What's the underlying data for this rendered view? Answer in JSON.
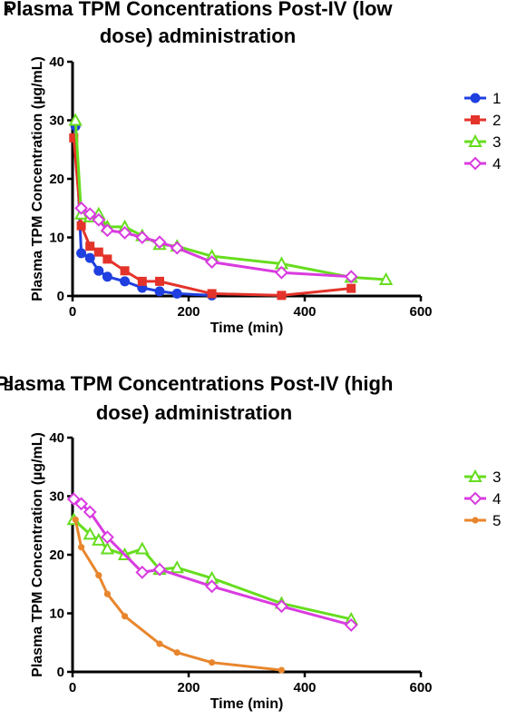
{
  "chart_data": [
    {
      "panel": "A",
      "type": "line",
      "title_lines": [
        "Plasma TPM Concentrations Post-IV (low",
        "dose) administration"
      ],
      "xlabel": "Time (min)",
      "ylabel": "Plasma TPM Concentration (µg/mL)",
      "xlim": [
        0,
        600
      ],
      "ylim": [
        0,
        40
      ],
      "xticks": [
        0,
        200,
        400,
        600
      ],
      "yticks": [
        0,
        10,
        20,
        30,
        40
      ],
      "grid": false,
      "legend_position": "right",
      "series": [
        {
          "name": "1",
          "color": "#1f3fe0",
          "marker": "circle",
          "x": [
            5,
            15,
            30,
            45,
            60,
            90,
            120,
            150,
            180,
            240
          ],
          "y": [
            29,
            7.3,
            6.5,
            4.3,
            3.3,
            2.5,
            1.4,
            0.8,
            0.4,
            0.1
          ]
        },
        {
          "name": "2",
          "color": "#e4332a",
          "marker": "square",
          "x": [
            2,
            15,
            30,
            45,
            60,
            90,
            120,
            150,
            240,
            360,
            480
          ],
          "y": [
            27,
            12,
            8.5,
            7.5,
            6.3,
            4.3,
            2.5,
            2.5,
            0.4,
            0.1,
            1.3
          ]
        },
        {
          "name": "3",
          "color": "#66dd1e",
          "marker": "triangle",
          "x": [
            5,
            15,
            30,
            45,
            60,
            90,
            120,
            150,
            180,
            240,
            360,
            480,
            540
          ],
          "y": [
            30,
            14,
            13.5,
            14,
            11.8,
            11.8,
            10.3,
            8.8,
            8.5,
            6.8,
            5.5,
            3.2,
            2.8
          ]
        },
        {
          "name": "4",
          "color": "#d93be0",
          "marker": "diamond",
          "x": [
            15,
            30,
            45,
            60,
            90,
            120,
            150,
            180,
            240,
            360,
            480
          ],
          "y": [
            15,
            14,
            13,
            11.2,
            10.8,
            10,
            9.2,
            8.2,
            5.8,
            4,
            3.3
          ]
        }
      ]
    },
    {
      "panel": "B",
      "type": "line",
      "title_lines": [
        "Plasma TPM Concentrations Post-IV (high",
        "dose) administration"
      ],
      "xlabel": "Time (min)",
      "ylabel": "Plasma TPM Concentration (µg/mL)",
      "xlim": [
        0,
        600
      ],
      "ylim": [
        0,
        40
      ],
      "xticks": [
        0,
        200,
        400,
        600
      ],
      "yticks": [
        0,
        10,
        20,
        30,
        40
      ],
      "grid": false,
      "legend_position": "right",
      "series": [
        {
          "name": "3",
          "color": "#66dd1e",
          "marker": "triangle",
          "x": [
            2,
            30,
            45,
            60,
            90,
            120,
            150,
            180,
            240,
            360,
            480
          ],
          "y": [
            26,
            23.5,
            22.5,
            21,
            20,
            21,
            17.5,
            17.8,
            16,
            11.7,
            9
          ]
        },
        {
          "name": "4",
          "color": "#d93be0",
          "marker": "diamond",
          "x": [
            2,
            15,
            30,
            60,
            120,
            150,
            240,
            360,
            480
          ],
          "y": [
            29.5,
            28.7,
            27.3,
            23,
            17,
            17.5,
            14.6,
            11.2,
            8
          ]
        },
        {
          "name": "5",
          "color": "#e8862d",
          "marker": "dot",
          "x": [
            5,
            15,
            45,
            60,
            90,
            150,
            180,
            240,
            360
          ],
          "y": [
            26,
            21.3,
            16.5,
            13.3,
            9.5,
            4.8,
            3.3,
            1.6,
            0.3
          ]
        }
      ]
    }
  ]
}
